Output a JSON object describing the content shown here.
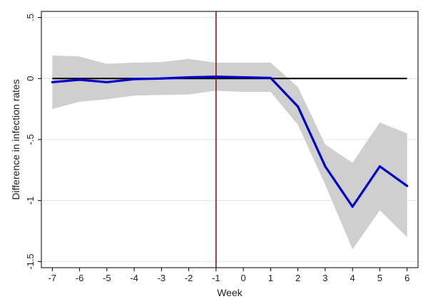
{
  "chart_data": {
    "type": "line",
    "title": "",
    "xlabel": "Week",
    "ylabel": "Difference in infection rates",
    "x": [
      -7,
      -6,
      -5,
      -4,
      -3,
      -2,
      -1,
      0,
      1,
      2,
      3,
      4,
      5,
      6
    ],
    "xticks": [
      "-7",
      "-6",
      "-5",
      "-4",
      "-3",
      "-2",
      "-1",
      "0",
      "1",
      "2",
      "3",
      "4",
      "5",
      "6"
    ],
    "yticks": [
      {
        "value": 0.5,
        "label": ".5"
      },
      {
        "value": 0,
        "label": "0"
      },
      {
        "value": -0.5,
        "label": "-.5"
      },
      {
        "value": -1,
        "label": "-1"
      },
      {
        "value": -1.5,
        "label": "-1.5"
      }
    ],
    "xlim": [
      -7.4,
      6.4
    ],
    "ylim": [
      -1.55,
      0.55
    ],
    "series": [
      {
        "values": [
          -0.03,
          -0.01,
          -0.03,
          -0.005,
          0.0,
          0.01,
          0.015,
          0.01,
          0.005,
          -0.23,
          -0.72,
          -1.05,
          -0.72,
          -0.88
        ],
        "ci_lower": [
          -0.25,
          -0.19,
          -0.17,
          -0.14,
          -0.135,
          -0.13,
          -0.1,
          -0.11,
          -0.11,
          -0.38,
          -0.87,
          -1.4,
          -1.08,
          -1.3
        ],
        "ci_upper": [
          0.19,
          0.18,
          0.12,
          0.13,
          0.135,
          0.16,
          0.13,
          0.13,
          0.13,
          -0.07,
          -0.54,
          -0.69,
          -0.36,
          -0.45
        ],
        "color": "#0000cc"
      }
    ],
    "reference_lines": [
      {
        "axis": "y",
        "value": 0,
        "color": "#000000"
      },
      {
        "axis": "x",
        "value": -1,
        "color": "#7a1a2a"
      }
    ],
    "ci_color": "#cfcfcf",
    "grid": true,
    "legend": "none"
  }
}
